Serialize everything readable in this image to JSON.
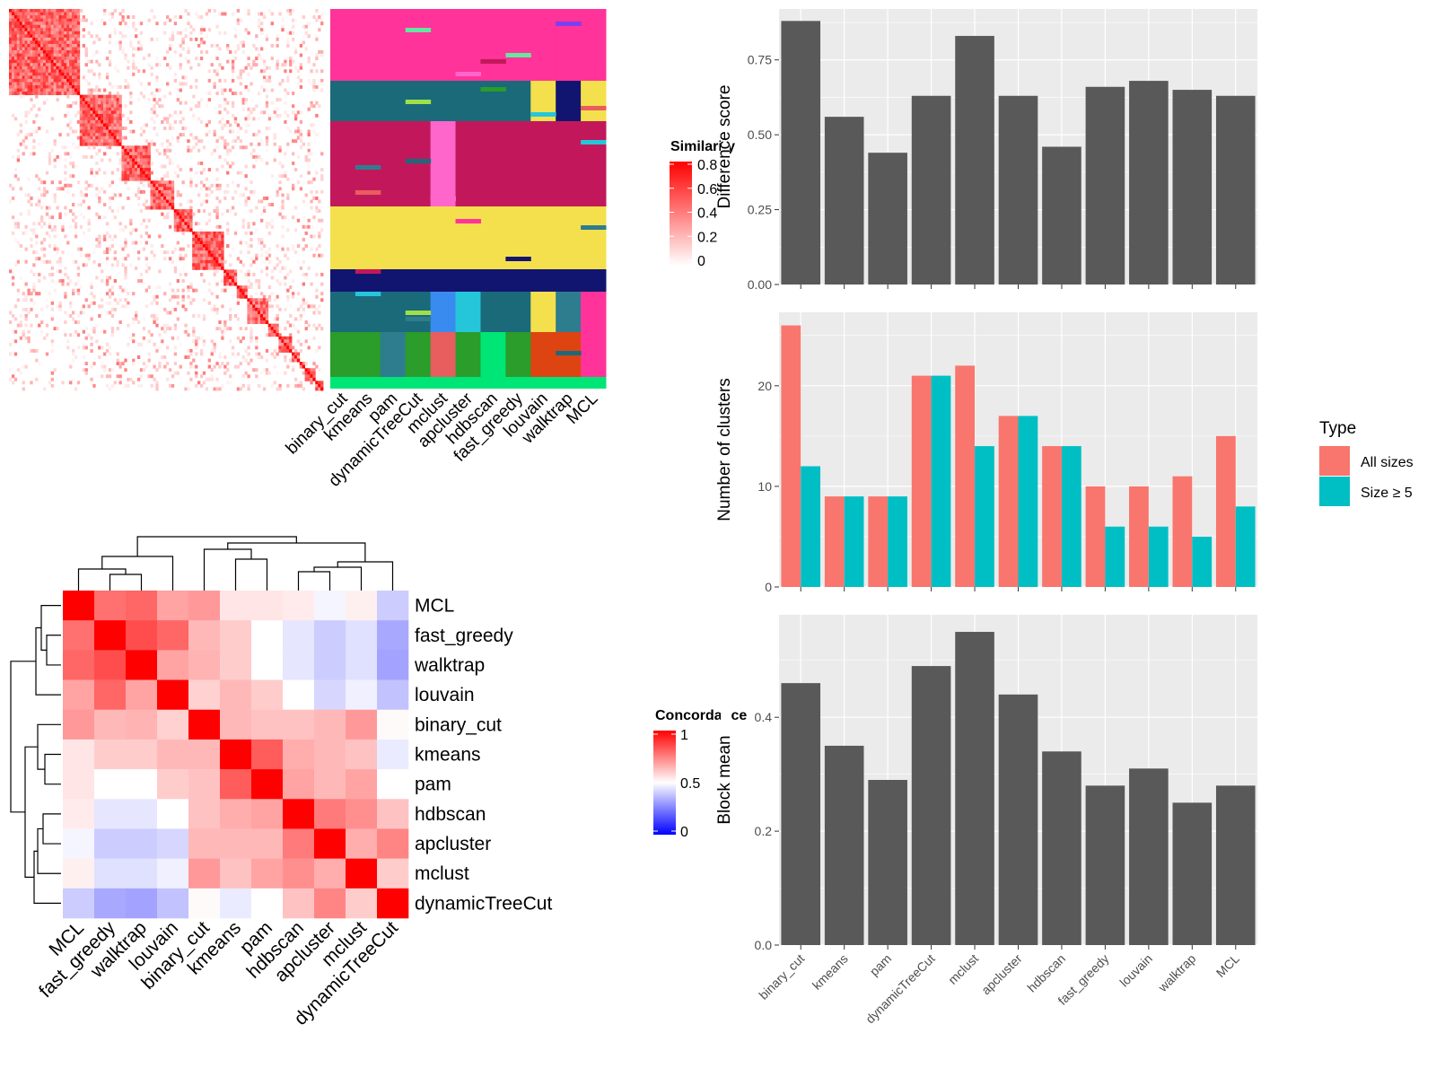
{
  "colors": {
    "bar_gray": "#595959",
    "panel_bg": "#ebebeb",
    "grid_major": "#ffffff",
    "all_sizes": "#f8766d",
    "size_ge5": "#00bfc4",
    "heat_high": "#ff0000",
    "heat_mid": "#ffffff",
    "heat_low": "#0000ff"
  },
  "chart_data": [
    {
      "id": "similarity_heatmap",
      "type": "heatmap",
      "legend_title": "Similarity",
      "legend_ticks": [
        "0.8",
        "0.6",
        "0.4",
        "0.2",
        "0"
      ],
      "column_labels": [
        "binary_cut",
        "kmeans",
        "pam",
        "dynamicTreeCut",
        "mclust",
        "apcluster",
        "hdbscan",
        "fast_greedy",
        "louvain",
        "walktrap",
        "MCL"
      ],
      "diagonal_block_sizes": [
        30,
        18,
        12,
        10,
        8,
        14,
        6,
        5,
        9,
        4,
        6,
        3,
        2,
        5,
        3
      ]
    },
    {
      "id": "concordance_heatmap",
      "type": "heatmap",
      "legend_title": "Concordance",
      "legend_ticks": [
        "1",
        "0.5",
        "0"
      ],
      "row_labels": [
        "MCL",
        "fast_greedy",
        "walktrap",
        "louvain",
        "binary_cut",
        "kmeans",
        "pam",
        "hdbscan",
        "apcluster",
        "mclust",
        "dynamicTreeCut"
      ],
      "column_labels": [
        "MCL",
        "fast_greedy",
        "walktrap",
        "louvain",
        "binary_cut",
        "kmeans",
        "pam",
        "hdbscan",
        "apcluster",
        "mclust",
        "dynamicTreeCut"
      ],
      "values": [
        [
          1.0,
          0.78,
          0.8,
          0.68,
          0.7,
          0.55,
          0.55,
          0.54,
          0.48,
          0.53,
          0.4
        ],
        [
          0.78,
          1.0,
          0.85,
          0.8,
          0.64,
          0.6,
          0.5,
          0.45,
          0.4,
          0.44,
          0.33
        ],
        [
          0.8,
          0.85,
          1.0,
          0.68,
          0.65,
          0.6,
          0.5,
          0.45,
          0.4,
          0.44,
          0.32
        ],
        [
          0.68,
          0.8,
          0.68,
          1.0,
          0.59,
          0.64,
          0.6,
          0.5,
          0.42,
          0.47,
          0.38
        ],
        [
          0.7,
          0.64,
          0.65,
          0.59,
          1.0,
          0.64,
          0.62,
          0.62,
          0.64,
          0.7,
          0.51
        ],
        [
          0.55,
          0.6,
          0.6,
          0.64,
          0.64,
          1.0,
          0.82,
          0.66,
          0.64,
          0.62,
          0.46
        ],
        [
          0.55,
          0.5,
          0.5,
          0.6,
          0.62,
          0.82,
          1.0,
          0.68,
          0.64,
          0.68,
          0.5
        ],
        [
          0.54,
          0.45,
          0.45,
          0.5,
          0.62,
          0.66,
          0.68,
          1.0,
          0.76,
          0.72,
          0.62
        ],
        [
          0.48,
          0.4,
          0.4,
          0.42,
          0.64,
          0.64,
          0.64,
          0.76,
          1.0,
          0.66,
          0.74
        ],
        [
          0.53,
          0.44,
          0.44,
          0.47,
          0.7,
          0.62,
          0.68,
          0.72,
          0.66,
          1.0,
          0.6
        ],
        [
          0.4,
          0.33,
          0.32,
          0.38,
          0.51,
          0.46,
          0.5,
          0.62,
          0.74,
          0.6,
          1.0
        ]
      ]
    },
    {
      "id": "difference_score",
      "type": "bar",
      "categories": [
        "binary_cut",
        "kmeans",
        "pam",
        "dynamicTreeCut",
        "mclust",
        "apcluster",
        "hdbscan",
        "fast_greedy",
        "louvain",
        "walktrap",
        "MCL"
      ],
      "values": [
        0.88,
        0.56,
        0.44,
        0.63,
        0.83,
        0.63,
        0.46,
        0.66,
        0.68,
        0.65,
        0.63
      ],
      "ylabel": "Difference score",
      "ylim": [
        0,
        0.92
      ],
      "yticks": [
        "0.00",
        "0.25",
        "0.50",
        "0.75"
      ]
    },
    {
      "id": "number_of_clusters",
      "type": "bar",
      "categories": [
        "binary_cut",
        "kmeans",
        "pam",
        "dynamicTreeCut",
        "mclust",
        "apcluster",
        "hdbscan",
        "fast_greedy",
        "louvain",
        "walktrap",
        "MCL"
      ],
      "series": [
        {
          "name": "All sizes",
          "values": [
            26,
            9,
            9,
            21,
            22,
            17,
            14,
            10,
            10,
            11,
            15
          ]
        },
        {
          "name": "Size ≥ 5",
          "values": [
            12,
            9,
            9,
            21,
            14,
            17,
            14,
            6,
            6,
            5,
            8
          ]
        }
      ],
      "ylabel": "Number of clusters",
      "ylim": [
        0,
        27.3
      ],
      "yticks": [
        "0",
        "10",
        "20"
      ],
      "legend_title": "Type",
      "legend_position": "right"
    },
    {
      "id": "block_mean",
      "type": "bar",
      "categories": [
        "binary_cut",
        "kmeans",
        "pam",
        "dynamicTreeCut",
        "mclust",
        "apcluster",
        "hdbscan",
        "fast_greedy",
        "louvain",
        "walktrap",
        "MCL"
      ],
      "values": [
        0.46,
        0.35,
        0.29,
        0.49,
        0.55,
        0.44,
        0.34,
        0.28,
        0.31,
        0.25,
        0.28
      ],
      "ylabel": "Block mean",
      "ylim": [
        0,
        0.58
      ],
      "yticks": [
        "0.0",
        "0.2",
        "0.4"
      ]
    }
  ]
}
